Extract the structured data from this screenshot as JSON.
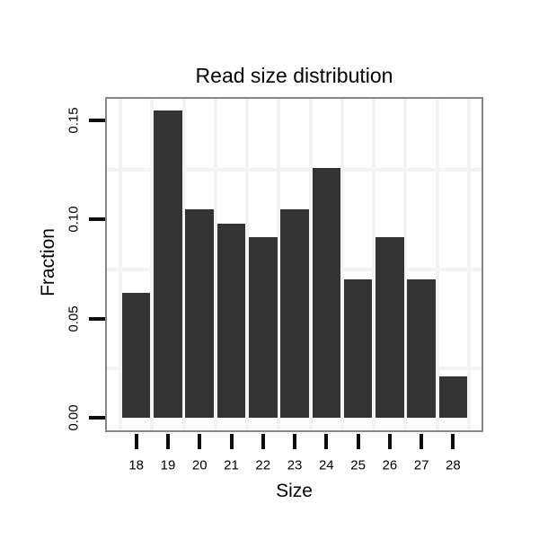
{
  "chart_data": {
    "type": "bar",
    "title": "Read size distribution",
    "xlabel": "Size",
    "ylabel": "Fraction",
    "categories": [
      "18",
      "19",
      "20",
      "21",
      "22",
      "23",
      "24",
      "25",
      "26",
      "27",
      "28"
    ],
    "values": [
      0.063,
      0.155,
      0.105,
      0.098,
      0.091,
      0.105,
      0.126,
      0.07,
      0.091,
      0.07,
      0.021
    ],
    "y_ticks": [
      {
        "value": 0.0,
        "label": "0.00"
      },
      {
        "value": 0.05,
        "label": "0.05"
      },
      {
        "value": 0.1,
        "label": "0.10"
      },
      {
        "value": 0.15,
        "label": "0.15"
      }
    ],
    "ylim": [
      0,
      0.162
    ],
    "minor_gridlines_y": [
      0.025,
      0.075,
      0.125
    ],
    "grid": "minor-gridlines-only, majors invisible",
    "legend": "none",
    "colors": {
      "bar": "#333333",
      "grid": "#f3f3f3",
      "panel_border": "#878787",
      "tick": "#0d0d0d",
      "text": "#000000",
      "background": "#ffffff"
    }
  }
}
